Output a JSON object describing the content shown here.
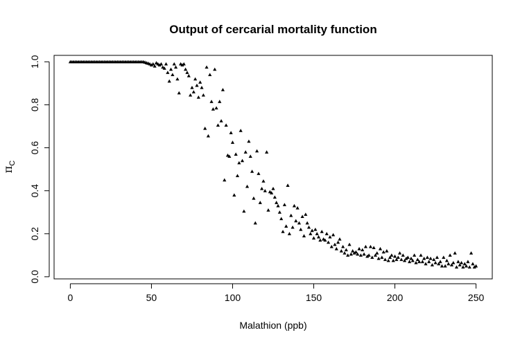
{
  "chart_data": {
    "type": "scatter",
    "title": "Output of cercarial mortality function",
    "xlabel": "Malathion (ppb)",
    "ylabel": {
      "symbol": "π",
      "subscript": "C"
    },
    "xlim": [
      -10,
      260
    ],
    "ylim": [
      -0.01,
      1.03
    ],
    "xticks": [
      0,
      50,
      100,
      150,
      200,
      250
    ],
    "yticks": [
      0.0,
      0.2,
      0.4,
      0.6,
      0.8,
      1.0
    ],
    "ytick_labels": [
      "0.0",
      "0.2",
      "0.4",
      "0.6",
      "0.8",
      "1.0"
    ],
    "xtick_labels": [
      "0",
      "50",
      "100",
      "150",
      "200",
      "250"
    ],
    "marker": "triangle",
    "marker_color": "#000000",
    "grid": false,
    "points": [
      [
        0,
        1.0
      ],
      [
        1,
        1.0
      ],
      [
        2,
        1.0
      ],
      [
        3,
        1.0
      ],
      [
        4,
        1.0
      ],
      [
        5,
        1.0
      ],
      [
        6,
        1.0
      ],
      [
        7,
        1.0
      ],
      [
        8,
        1.0
      ],
      [
        9,
        1.0
      ],
      [
        10,
        1.0
      ],
      [
        11,
        1.0
      ],
      [
        12,
        1.0
      ],
      [
        13,
        1.0
      ],
      [
        14,
        1.0
      ],
      [
        15,
        1.0
      ],
      [
        16,
        1.0
      ],
      [
        17,
        1.0
      ],
      [
        18,
        1.0
      ],
      [
        19,
        1.0
      ],
      [
        20,
        1.0
      ],
      [
        21,
        1.0
      ],
      [
        22,
        1.0
      ],
      [
        23,
        1.0
      ],
      [
        24,
        1.0
      ],
      [
        25,
        1.0
      ],
      [
        26,
        1.0
      ],
      [
        27,
        1.0
      ],
      [
        28,
        1.0
      ],
      [
        29,
        1.0
      ],
      [
        30,
        1.0
      ],
      [
        31,
        1.0
      ],
      [
        32,
        1.0
      ],
      [
        33,
        1.0
      ],
      [
        34,
        1.0
      ],
      [
        35,
        1.0
      ],
      [
        36,
        1.0
      ],
      [
        37,
        1.0
      ],
      [
        38,
        1.0
      ],
      [
        39,
        1.0
      ],
      [
        40,
        1.0
      ],
      [
        41,
        1.0
      ],
      [
        42,
        1.0
      ],
      [
        43,
        1.0
      ],
      [
        44,
        1.0
      ],
      [
        45,
        1.0
      ],
      [
        46,
        0.998
      ],
      [
        47,
        0.995
      ],
      [
        48,
        0.993
      ],
      [
        49,
        0.99
      ],
      [
        50,
        0.985
      ],
      [
        51,
        0.99
      ],
      [
        52,
        0.98
      ],
      [
        53,
        0.995
      ],
      [
        54,
        0.99
      ],
      [
        55,
        0.985
      ],
      [
        56,
        0.99
      ],
      [
        57,
        0.975
      ],
      [
        58,
        0.97
      ],
      [
        59,
        0.99
      ],
      [
        60,
        0.95
      ],
      [
        61,
        0.91
      ],
      [
        62,
        0.965
      ],
      [
        63,
        0.94
      ],
      [
        64,
        0.99
      ],
      [
        65,
        0.975
      ],
      [
        66,
        0.92
      ],
      [
        67,
        0.855
      ],
      [
        68,
        0.99
      ],
      [
        69,
        0.985
      ],
      [
        70,
        0.99
      ],
      [
        71,
        0.965
      ],
      [
        72,
        0.95
      ],
      [
        73,
        0.935
      ],
      [
        74,
        0.845
      ],
      [
        75,
        0.88
      ],
      [
        76,
        0.86
      ],
      [
        77,
        0.92
      ],
      [
        78,
        0.89
      ],
      [
        79,
        0.835
      ],
      [
        80,
        0.905
      ],
      [
        81,
        0.88
      ],
      [
        82,
        0.845
      ],
      [
        83,
        0.69
      ],
      [
        84,
        0.975
      ],
      [
        85,
        0.655
      ],
      [
        86,
        0.94
      ],
      [
        87,
        0.815
      ],
      [
        88,
        0.78
      ],
      [
        89,
        0.965
      ],
      [
        90,
        0.785
      ],
      [
        91,
        0.705
      ],
      [
        92,
        0.815
      ],
      [
        93,
        0.725
      ],
      [
        94,
        0.87
      ],
      [
        95,
        0.45
      ],
      [
        96,
        0.705
      ],
      [
        97,
        0.565
      ],
      [
        98,
        0.56
      ],
      [
        99,
        0.67
      ],
      [
        100,
        0.625
      ],
      [
        101,
        0.38
      ],
      [
        102,
        0.57
      ],
      [
        103,
        0.47
      ],
      [
        104,
        0.53
      ],
      [
        105,
        0.68
      ],
      [
        106,
        0.54
      ],
      [
        107,
        0.305
      ],
      [
        108,
        0.58
      ],
      [
        109,
        0.42
      ],
      [
        110,
        0.63
      ],
      [
        111,
        0.56
      ],
      [
        112,
        0.49
      ],
      [
        113,
        0.365
      ],
      [
        114,
        0.25
      ],
      [
        115,
        0.585
      ],
      [
        116,
        0.48
      ],
      [
        117,
        0.345
      ],
      [
        118,
        0.41
      ],
      [
        119,
        0.445
      ],
      [
        120,
        0.4
      ],
      [
        121,
        0.58
      ],
      [
        122,
        0.31
      ],
      [
        123,
        0.395
      ],
      [
        124,
        0.39
      ],
      [
        125,
        0.41
      ],
      [
        126,
        0.37
      ],
      [
        127,
        0.345
      ],
      [
        128,
        0.33
      ],
      [
        129,
        0.3
      ],
      [
        130,
        0.27
      ],
      [
        131,
        0.21
      ],
      [
        132,
        0.335
      ],
      [
        133,
        0.235
      ],
      [
        134,
        0.425
      ],
      [
        135,
        0.2
      ],
      [
        136,
        0.285
      ],
      [
        137,
        0.23
      ],
      [
        138,
        0.33
      ],
      [
        139,
        0.26
      ],
      [
        140,
        0.32
      ],
      [
        141,
        0.25
      ],
      [
        142,
        0.22
      ],
      [
        143,
        0.28
      ],
      [
        144,
        0.19
      ],
      [
        145,
        0.29
      ],
      [
        146,
        0.25
      ],
      [
        147,
        0.23
      ],
      [
        148,
        0.2
      ],
      [
        149,
        0.215
      ],
      [
        150,
        0.18
      ],
      [
        151,
        0.22
      ],
      [
        152,
        0.2
      ],
      [
        153,
        0.185
      ],
      [
        154,
        0.17
      ],
      [
        155,
        0.21
      ],
      [
        156,
        0.175
      ],
      [
        157,
        0.17
      ],
      [
        158,
        0.2
      ],
      [
        159,
        0.16
      ],
      [
        160,
        0.185
      ],
      [
        161,
        0.14
      ],
      [
        162,
        0.195
      ],
      [
        163,
        0.15
      ],
      [
        164,
        0.13
      ],
      [
        165,
        0.16
      ],
      [
        166,
        0.175
      ],
      [
        167,
        0.12
      ],
      [
        168,
        0.14
      ],
      [
        169,
        0.11
      ],
      [
        170,
        0.125
      ],
      [
        171,
        0.1
      ],
      [
        172,
        0.15
      ],
      [
        173,
        0.105
      ],
      [
        174,
        0.12
      ],
      [
        175,
        0.11
      ],
      [
        176,
        0.115
      ],
      [
        177,
        0.105
      ],
      [
        178,
        0.13
      ],
      [
        179,
        0.1
      ],
      [
        180,
        0.125
      ],
      [
        181,
        0.105
      ],
      [
        182,
        0.14
      ],
      [
        183,
        0.095
      ],
      [
        184,
        0.1
      ],
      [
        185,
        0.14
      ],
      [
        186,
        0.09
      ],
      [
        187,
        0.135
      ],
      [
        188,
        0.1
      ],
      [
        189,
        0.11
      ],
      [
        190,
        0.085
      ],
      [
        191,
        0.13
      ],
      [
        192,
        0.09
      ],
      [
        193,
        0.115
      ],
      [
        194,
        0.08
      ],
      [
        195,
        0.12
      ],
      [
        196,
        0.075
      ],
      [
        197,
        0.09
      ],
      [
        198,
        0.1
      ],
      [
        199,
        0.075
      ],
      [
        200,
        0.095
      ],
      [
        201,
        0.08
      ],
      [
        202,
        0.09
      ],
      [
        203,
        0.11
      ],
      [
        204,
        0.08
      ],
      [
        205,
        0.1
      ],
      [
        206,
        0.075
      ],
      [
        207,
        0.085
      ],
      [
        208,
        0.09
      ],
      [
        209,
        0.07
      ],
      [
        210,
        0.085
      ],
      [
        211,
        0.075
      ],
      [
        212,
        0.1
      ],
      [
        213,
        0.065
      ],
      [
        214,
        0.08
      ],
      [
        215,
        0.07
      ],
      [
        216,
        0.1
      ],
      [
        217,
        0.07
      ],
      [
        218,
        0.085
      ],
      [
        219,
        0.06
      ],
      [
        220,
        0.09
      ],
      [
        221,
        0.07
      ],
      [
        222,
        0.085
      ],
      [
        223,
        0.055
      ],
      [
        224,
        0.08
      ],
      [
        225,
        0.065
      ],
      [
        226,
        0.09
      ],
      [
        227,
        0.06
      ],
      [
        228,
        0.07
      ],
      [
        229,
        0.05
      ],
      [
        230,
        0.09
      ],
      [
        231,
        0.05
      ],
      [
        232,
        0.075
      ],
      [
        233,
        0.06
      ],
      [
        234,
        0.1
      ],
      [
        235,
        0.055
      ],
      [
        236,
        0.065
      ],
      [
        237,
        0.11
      ],
      [
        238,
        0.045
      ],
      [
        239,
        0.07
      ],
      [
        240,
        0.055
      ],
      [
        241,
        0.065
      ],
      [
        242,
        0.045
      ],
      [
        243,
        0.06
      ],
      [
        244,
        0.05
      ],
      [
        245,
        0.07
      ],
      [
        246,
        0.045
      ],
      [
        247,
        0.11
      ],
      [
        248,
        0.06
      ],
      [
        249,
        0.045
      ],
      [
        250,
        0.05
      ]
    ]
  }
}
